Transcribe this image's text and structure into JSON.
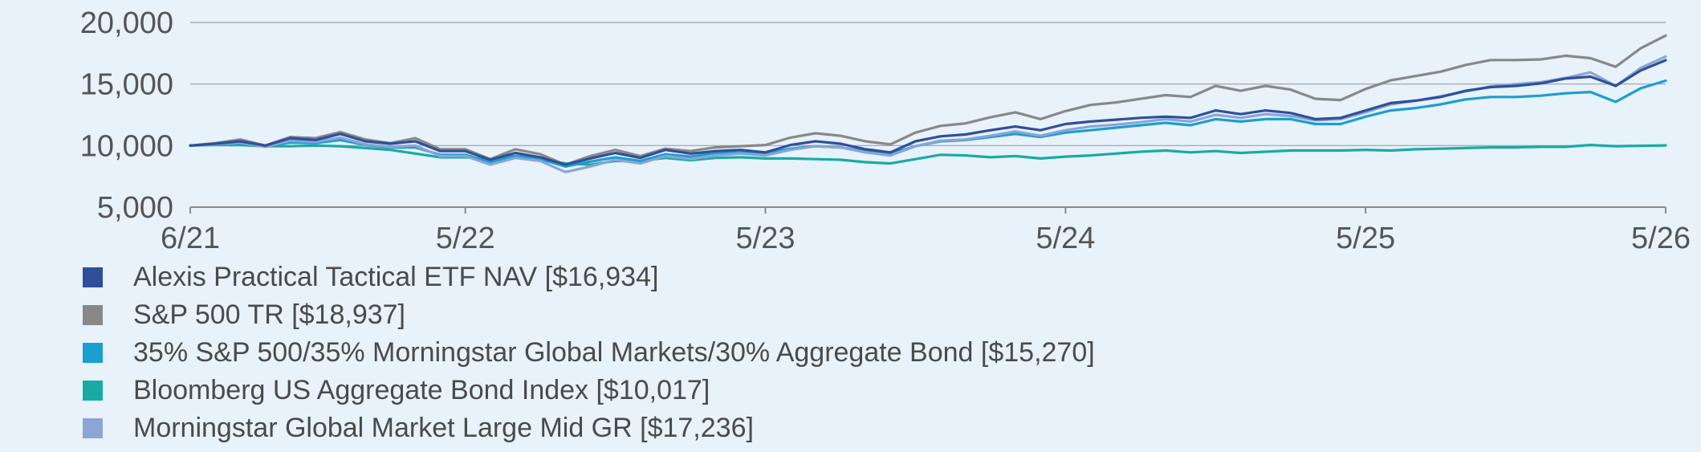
{
  "chart_data": {
    "type": "line",
    "title": "",
    "xlabel": "",
    "ylabel": "",
    "ylim": [
      5000,
      20000
    ],
    "yticks": [
      5000,
      10000,
      15000,
      20000
    ],
    "ytick_labels": [
      "5,000",
      "10,000",
      "15,000",
      "20,000"
    ],
    "xlim": [
      "6/21",
      "5/26"
    ],
    "xticks": [
      "6/21",
      "5/22",
      "5/23",
      "5/24",
      "5/25",
      "5/26"
    ],
    "grid": "horizontal",
    "legend_position": "bottom",
    "x": [
      "2021-06",
      "2021-07",
      "2021-08",
      "2021-09",
      "2021-10",
      "2021-11",
      "2021-12",
      "2022-01",
      "2022-02",
      "2022-03",
      "2022-04",
      "2022-05",
      "2022-06",
      "2022-07",
      "2022-08",
      "2022-09",
      "2022-10",
      "2022-11",
      "2022-12",
      "2023-01",
      "2023-02",
      "2023-03",
      "2023-04",
      "2023-05",
      "2023-06",
      "2023-07",
      "2023-08",
      "2023-09",
      "2023-10",
      "2023-11",
      "2023-12",
      "2024-01",
      "2024-02",
      "2024-03",
      "2024-04",
      "2024-05",
      "2024-06",
      "2024-07",
      "2024-08",
      "2024-09",
      "2024-10",
      "2024-11",
      "2024-12",
      "2025-01",
      "2025-02",
      "2025-03",
      "2025-04",
      "2025-05",
      "2025-06",
      "2025-07",
      "2025-08",
      "2025-09",
      "2025-10",
      "2025-11",
      "2025-12",
      "2026-01",
      "2026-02",
      "2026-03",
      "2026-04",
      "2026-05"
    ],
    "series": [
      {
        "name": "Alexis Practical Tactical ETF NAV [$16,934]",
        "color": "#2e4f9a",
        "values": [
          10000,
          10150,
          10350,
          10000,
          10600,
          10450,
          10950,
          10350,
          10150,
          10350,
          9550,
          9550,
          8850,
          9400,
          9050,
          8450,
          8950,
          9400,
          9000,
          9650,
          9350,
          9550,
          9650,
          9450,
          10050,
          10350,
          10150,
          9700,
          9450,
          10350,
          10750,
          10900,
          11250,
          11550,
          11250,
          11750,
          11950,
          12100,
          12250,
          12350,
          12250,
          12850,
          12550,
          12850,
          12650,
          12150,
          12250,
          12850,
          13450,
          13650,
          13950,
          14450,
          14750,
          14850,
          15050,
          15450,
          15600,
          14850,
          16100,
          16934
        ]
      },
      {
        "name": "S&P 500 TR [$18,937]",
        "color": "#888888",
        "values": [
          10000,
          10200,
          10500,
          10000,
          10700,
          10600,
          11100,
          10500,
          10200,
          10600,
          9700,
          9700,
          8900,
          9700,
          9300,
          8450,
          9150,
          9650,
          9150,
          9750,
          9550,
          9850,
          9950,
          10050,
          10650,
          11000,
          10800,
          10350,
          10100,
          11050,
          11600,
          11800,
          12300,
          12700,
          12150,
          12800,
          13300,
          13500,
          13800,
          14100,
          13950,
          14850,
          14450,
          14850,
          14550,
          13800,
          13700,
          14600,
          15300,
          15650,
          16000,
          16550,
          16950,
          16950,
          17000,
          17300,
          17100,
          16400,
          17900,
          18937
        ]
      },
      {
        "name": "35% S&P 500/35% Morningstar Global Markets/30% Aggregate Bond [$15,270]",
        "color": "#1a9fd0",
        "values": [
          10000,
          10100,
          10200,
          9950,
          10250,
          10200,
          10450,
          10050,
          9850,
          9850,
          9250,
          9250,
          8650,
          9150,
          8900,
          8300,
          8700,
          9050,
          8750,
          9300,
          9100,
          9400,
          9450,
          9350,
          9750,
          9950,
          9850,
          9550,
          9350,
          9950,
          10350,
          10450,
          10700,
          10950,
          10700,
          11050,
          11250,
          11450,
          11650,
          11850,
          11650,
          12150,
          11950,
          12150,
          12150,
          11750,
          11750,
          12350,
          12850,
          13050,
          13350,
          13750,
          13950,
          13950,
          14050,
          14250,
          14350,
          13550,
          14650,
          15270
        ]
      },
      {
        "name": "Bloomberg US Aggregate Bond Index [$10,017]",
        "color": "#1aaaa5",
        "values": [
          10000,
          10050,
          10050,
          9950,
          9950,
          10000,
          9950,
          9800,
          9650,
          9350,
          9050,
          9050,
          8900,
          9150,
          8900,
          8550,
          8450,
          8750,
          8750,
          9000,
          8800,
          9000,
          9050,
          8950,
          8950,
          8900,
          8850,
          8650,
          8550,
          8900,
          9250,
          9200,
          9050,
          9150,
          8950,
          9100,
          9200,
          9350,
          9500,
          9600,
          9450,
          9550,
          9400,
          9500,
          9600,
          9600,
          9600,
          9650,
          9600,
          9700,
          9750,
          9800,
          9850,
          9850,
          9900,
          9900,
          10050,
          9950,
          9980,
          10017
        ]
      },
      {
        "name": "Morningstar Global Market Large Mid GR [$17,236]",
        "color": "#8aa5d6",
        "values": [
          10000,
          10100,
          10250,
          9900,
          10400,
          10300,
          10650,
          10100,
          9900,
          10000,
          9150,
          9150,
          8450,
          9000,
          8750,
          7850,
          8300,
          8850,
          8550,
          9150,
          8900,
          9200,
          9350,
          9200,
          9650,
          9950,
          9850,
          9450,
          9200,
          9950,
          10400,
          10500,
          10800,
          11150,
          10800,
          11250,
          11550,
          11700,
          11900,
          12150,
          11950,
          12500,
          12250,
          12550,
          12400,
          12050,
          12150,
          12700,
          13350,
          13650,
          14000,
          14400,
          14800,
          15000,
          15150,
          15500,
          15950,
          14850,
          16300,
          17236
        ]
      }
    ]
  },
  "legend": [
    {
      "label": "Alexis Practical Tactical ETF NAV [$16,934]",
      "color": "#2e4f9a"
    },
    {
      "label": "S&P 500 TR [$18,937]",
      "color": "#888888"
    },
    {
      "label": "35% S&P 500/35% Morningstar Global Markets/30% Aggregate Bond [$15,270]",
      "color": "#1a9fd0"
    },
    {
      "label": "Bloomberg US Aggregate Bond Index [$10,017]",
      "color": "#1aaaa5"
    },
    {
      "label": "Morningstar Global Market Large Mid GR [$17,236]",
      "color": "#8aa5d6"
    }
  ]
}
